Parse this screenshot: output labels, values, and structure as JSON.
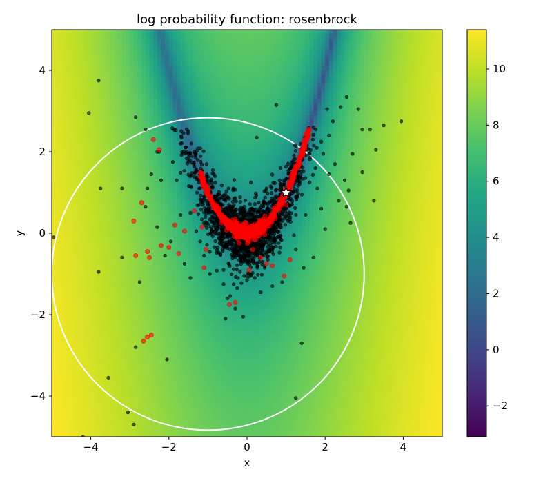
{
  "chart_data": {
    "type": "heatmap",
    "title": "log probability function: rosenbrock",
    "xlabel": "x",
    "ylabel": "y",
    "xlim": [
      -5,
      5
    ],
    "ylim": [
      -5,
      5
    ],
    "x_ticks": [
      -4,
      -2,
      0,
      2,
      4
    ],
    "y_ticks": [
      -4,
      -2,
      0,
      2,
      4
    ],
    "x_tick_labels": [
      "−4",
      "−2",
      "0",
      "2",
      "4"
    ],
    "y_tick_labels": [
      "−4",
      "−2",
      "0",
      "2",
      "4"
    ],
    "colorbar": {
      "colormap": "viridis",
      "range": [
        -3.1,
        11.4
      ],
      "ticks": [
        -2,
        0,
        2,
        4,
        6,
        8,
        10
      ],
      "tick_labels": [
        "−2",
        "0",
        "2",
        "4",
        "6",
        "8",
        "10"
      ]
    },
    "field": {
      "function": "rosenbrock",
      "a": 1,
      "b": 100,
      "transform": "log(1 + f(x, y))"
    },
    "circle": {
      "center": [
        -1,
        -1
      ],
      "radius": 4,
      "color": "#ffffff"
    },
    "star": {
      "x": 1,
      "y": 1,
      "fill": "#ffffff",
      "stroke": "#000000"
    },
    "series": [
      {
        "color": "#000000",
        "style": "scatter",
        "points": [
          [
            -3.8,
            3.75
          ],
          [
            -4.05,
            2.95
          ],
          [
            -2.85,
            2.85
          ],
          [
            -2.6,
            2.55
          ],
          [
            -2.3,
            2.0
          ],
          [
            -3.75,
            1.1
          ],
          [
            -3.2,
            1.1
          ],
          [
            -4.95,
            -0.1
          ],
          [
            -3.2,
            -0.6
          ],
          [
            -3.8,
            -0.95
          ],
          [
            -2.75,
            -1.2
          ],
          [
            -3.55,
            -3.55
          ],
          [
            -2.85,
            -2.8
          ],
          [
            -2.05,
            -3.1
          ],
          [
            -3.05,
            -4.4
          ],
          [
            -2.9,
            -4.7
          ],
          [
            -4.2,
            -5.0
          ],
          [
            -2.45,
            1.45
          ],
          [
            -2.2,
            1.3
          ],
          [
            -2.55,
            1.1
          ],
          [
            -1.8,
            1.3
          ],
          [
            -2.6,
            0.65
          ],
          [
            -2.3,
            0.15
          ],
          [
            -1.95,
            -0.2
          ],
          [
            -2.1,
            -0.55
          ],
          [
            -1.6,
            -0.75
          ],
          [
            -1.45,
            -1.1
          ],
          [
            -1.7,
            0.45
          ],
          [
            -1.3,
            0.05
          ],
          [
            -1.1,
            -0.55
          ],
          [
            -0.95,
            -1.0
          ],
          [
            -0.6,
            -1.25
          ],
          [
            -0.5,
            -1.6
          ],
          [
            -0.55,
            -2.1
          ],
          [
            -0.3,
            -1.85
          ],
          [
            -0.1,
            -2.05
          ],
          [
            0.2,
            -1.1
          ],
          [
            0.45,
            -0.85
          ],
          [
            0.65,
            -1.3
          ],
          [
            0.9,
            -1.2
          ],
          [
            1.25,
            -0.4
          ],
          [
            1.45,
            -0.85
          ],
          [
            1.7,
            -0.6
          ],
          [
            1.4,
            -2.7
          ],
          [
            1.25,
            -4.05
          ],
          [
            0.75,
            3.15
          ],
          [
            0.25,
            2.35
          ],
          [
            2.05,
            3.05
          ],
          [
            2.4,
            3.1
          ],
          [
            2.55,
            3.35
          ],
          [
            2.85,
            3.05
          ],
          [
            2.95,
            2.55
          ],
          [
            3.15,
            2.55
          ],
          [
            3.3,
            2.05
          ],
          [
            2.7,
            1.95
          ],
          [
            2.25,
            1.7
          ],
          [
            2.5,
            1.3
          ],
          [
            2.95,
            1.5
          ],
          [
            2.35,
            0.8
          ],
          [
            2.55,
            0.65
          ],
          [
            2.65,
            0.25
          ],
          [
            3.25,
            0.8
          ],
          [
            3.5,
            2.65
          ],
          [
            3.95,
            2.75
          ],
          [
            2.6,
            1.05
          ],
          [
            2.1,
            1.45
          ],
          [
            1.9,
            0.6
          ],
          [
            2.0,
            0.1
          ],
          [
            -0.35,
            1.1
          ],
          [
            0.1,
            1.25
          ],
          [
            0.5,
            1.1
          ],
          [
            -0.75,
            0.95
          ],
          [
            -1.1,
            0.85
          ],
          [
            -1.45,
            0.5
          ],
          [
            -0.9,
            0.3
          ],
          [
            -0.4,
            0.55
          ],
          [
            0.3,
            0.75
          ],
          [
            0.75,
            0.65
          ],
          [
            1.05,
            0.3
          ],
          [
            1.5,
            0.45
          ],
          [
            1.2,
            -0.05
          ],
          [
            0.85,
            -0.35
          ],
          [
            0.5,
            -0.5
          ],
          [
            0.05,
            -0.7
          ],
          [
            -0.35,
            -0.55
          ],
          [
            -0.75,
            -0.35
          ],
          [
            -1.2,
            -0.2
          ],
          [
            -0.6,
            -0.9
          ],
          [
            0.0,
            -1.15
          ],
          [
            0.35,
            -1.45
          ],
          [
            -0.25,
            -1.35
          ],
          [
            0.7,
            -0.15
          ],
          [
            1.8,
            1.1
          ],
          [
            1.95,
            1.95
          ],
          [
            2.1,
            2.4
          ],
          [
            1.7,
            2.6
          ],
          [
            2.2,
            2.75
          ],
          [
            -1.9,
            1.75
          ],
          [
            -2.25,
            2.0
          ],
          [
            -1.5,
            1.95
          ],
          [
            -1.7,
            2.2
          ],
          [
            -1.35,
            1.65
          ],
          [
            -1.15,
            1.35
          ],
          [
            -0.85,
            1.45
          ],
          [
            -0.55,
            0.8
          ],
          [
            -1.0,
            0.6
          ],
          [
            0.95,
            1.3
          ],
          [
            1.3,
            0.9
          ],
          [
            1.6,
            1.25
          ],
          [
            1.75,
            1.6
          ],
          [
            1.9,
            2.25
          ]
        ]
      },
      {
        "color": "#ff0000",
        "style": "scatter",
        "points": [
          [
            -2.4,
            2.3
          ],
          [
            -2.25,
            2.05
          ],
          [
            -2.7,
            0.75
          ],
          [
            -2.9,
            0.3
          ],
          [
            -2.85,
            -0.55
          ],
          [
            -2.55,
            -0.45
          ],
          [
            -2.5,
            -0.6
          ],
          [
            -2.0,
            -0.35
          ],
          [
            -1.75,
            -0.5
          ],
          [
            -2.2,
            -0.3
          ],
          [
            -1.85,
            0.2
          ],
          [
            -1.6,
            0.05
          ],
          [
            -2.55,
            -2.55
          ],
          [
            -2.65,
            -2.65
          ],
          [
            -2.45,
            -2.5
          ],
          [
            -0.45,
            -1.75
          ],
          [
            -0.3,
            -1.7
          ],
          [
            0.5,
            -0.75
          ],
          [
            0.65,
            -0.8
          ],
          [
            0.95,
            -1.05
          ],
          [
            1.1,
            -0.65
          ],
          [
            -1.05,
            -0.4
          ],
          [
            -1.1,
            -0.85
          ],
          [
            -0.65,
            0.25
          ],
          [
            -0.3,
            0.35
          ],
          [
            1.0,
            0.7
          ],
          [
            -1.35,
            0.55
          ],
          [
            -1.15,
            0.15
          ],
          [
            0.15,
            -0.4
          ],
          [
            0.35,
            -0.6
          ],
          [
            0.05,
            -0.9
          ]
        ]
      }
    ]
  }
}
